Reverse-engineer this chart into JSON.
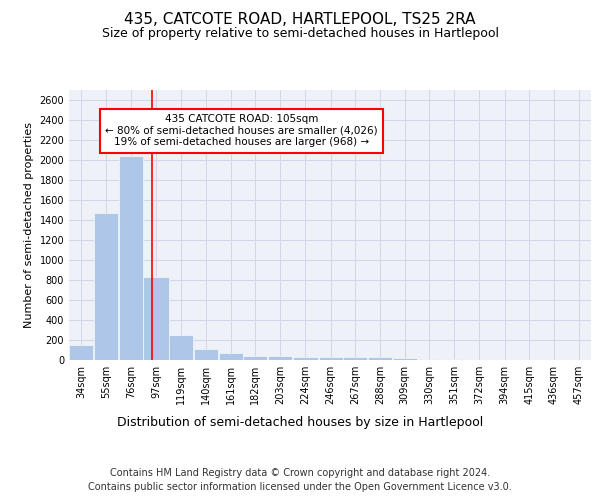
{
  "title1": "435, CATCOTE ROAD, HARTLEPOOL, TS25 2RA",
  "title2": "Size of property relative to semi-detached houses in Hartlepool",
  "xlabel": "Distribution of semi-detached houses by size in Hartlepool",
  "ylabel": "Number of semi-detached properties",
  "annotation_title": "435 CATCOTE ROAD: 105sqm",
  "annotation_line1": "← 80% of semi-detached houses are smaller (4,026)",
  "annotation_line2": "19% of semi-detached houses are larger (968) →",
  "footer1": "Contains HM Land Registry data © Crown copyright and database right 2024.",
  "footer2": "Contains public sector information licensed under the Open Government Licence v3.0.",
  "property_size_sqm": 105,
  "bar_labels": [
    "34sqm",
    "55sqm",
    "76sqm",
    "97sqm",
    "119sqm",
    "140sqm",
    "161sqm",
    "182sqm",
    "203sqm",
    "224sqm",
    "246sqm",
    "267sqm",
    "288sqm",
    "309sqm",
    "330sqm",
    "351sqm",
    "372sqm",
    "394sqm",
    "415sqm",
    "436sqm",
    "457sqm"
  ],
  "bar_left_edges": [
    34,
    55,
    76,
    97,
    119,
    140,
    161,
    182,
    203,
    224,
    246,
    267,
    288,
    309,
    330,
    351,
    372,
    394,
    415,
    436,
    457
  ],
  "bar_widths": [
    21,
    21,
    21,
    22,
    21,
    21,
    21,
    21,
    21,
    22,
    21,
    21,
    21,
    21,
    21,
    21,
    22,
    21,
    21,
    21,
    21
  ],
  "bar_values": [
    150,
    1470,
    2040,
    835,
    255,
    115,
    70,
    45,
    40,
    35,
    35,
    35,
    30,
    20,
    15,
    10,
    5,
    5,
    3,
    2,
    1
  ],
  "bar_color": "#aec6e8",
  "grid_color": "#d0d8e8",
  "background_color": "#eef2f8",
  "vline_x": 105,
  "vline_color": "red",
  "annotation_box_color": "red",
  "ylim": [
    0,
    2700
  ],
  "yticks": [
    0,
    200,
    400,
    600,
    800,
    1000,
    1200,
    1400,
    1600,
    1800,
    2000,
    2200,
    2400,
    2600
  ],
  "title1_fontsize": 11,
  "title2_fontsize": 9,
  "ylabel_fontsize": 8,
  "xlabel_fontsize": 9,
  "tick_fontsize": 7,
  "annotation_fontsize": 7.5,
  "footer_fontsize": 7
}
